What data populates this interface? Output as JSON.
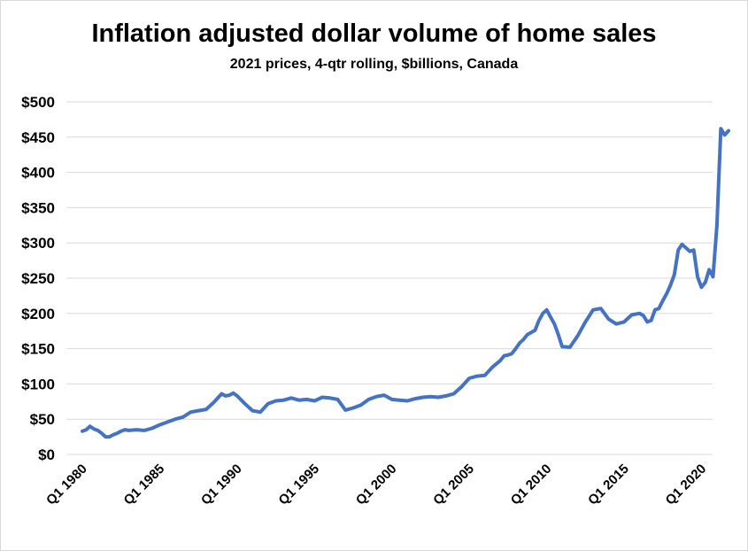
{
  "chart_data": {
    "type": "line",
    "title": "Inflation adjusted dollar volume of home sales",
    "subtitle": "2021 prices, 4-qtr rolling, $billions, Canada",
    "xlabel": "",
    "ylabel": "",
    "x_range": [
      1980.0,
      2021.75
    ],
    "ylim": [
      0,
      500
    ],
    "y_ticks": [
      0,
      50,
      100,
      150,
      200,
      250,
      300,
      350,
      400,
      450,
      500
    ],
    "y_tick_labels": [
      "$0",
      "$50",
      "$100",
      "$150",
      "$200",
      "$250",
      "$300",
      "$350",
      "$400",
      "$450",
      "$500"
    ],
    "x_ticks": [
      1980,
      1985,
      1990,
      1995,
      2000,
      2005,
      2010,
      2015,
      2020
    ],
    "x_tick_labels": [
      "Q1 1980",
      "Q1 1985",
      "Q1 1990",
      "Q1 1995",
      "Q1 2000",
      "Q1 2005",
      "Q1 2010",
      "Q1 2015",
      "Q1 2020"
    ],
    "grid": "horizontal",
    "legend": "none",
    "line_color": "#4472C4",
    "series": [
      {
        "x": [
          1980.0,
          1980.25,
          1980.5,
          1980.75,
          1981.0,
          1981.25,
          1981.5,
          1981.75,
          1982.0,
          1982.25,
          1982.5,
          1982.75,
          1983.0,
          1983.5,
          1984.0,
          1984.5,
          1985.0,
          1985.5,
          1986.0,
          1986.5,
          1987.0,
          1987.5,
          1988.0,
          1988.5,
          1989.0,
          1989.25,
          1989.5,
          1989.75,
          1990.0,
          1990.5,
          1991.0,
          1991.5,
          1992.0,
          1992.5,
          1993.0,
          1993.5,
          1994.0,
          1994.5,
          1995.0,
          1995.5,
          1996.0,
          1996.5,
          1997.0,
          1997.5,
          1998.0,
          1998.5,
          1999.0,
          1999.5,
          2000.0,
          2000.5,
          2001.0,
          2001.5,
          2002.0,
          2002.5,
          2003.0,
          2003.5,
          2004.0,
          2004.5,
          2005.0,
          2005.5,
          2006.0,
          2006.5,
          2007.0,
          2007.25,
          2007.5,
          2007.75,
          2008.0,
          2008.25,
          2008.5,
          2008.75,
          2009.0,
          2009.25,
          2009.5,
          2009.75,
          2010.0,
          2010.25,
          2010.5,
          2010.75,
          2011.0,
          2011.5,
          2012.0,
          2012.5,
          2013.0,
          2013.5,
          2014.0,
          2014.5,
          2015.0,
          2015.5,
          2016.0,
          2016.25,
          2016.5,
          2016.75,
          2017.0,
          2017.25,
          2017.5,
          2017.75,
          2018.0,
          2018.25,
          2018.5,
          2018.75,
          2019.0,
          2019.25,
          2019.5,
          2019.75,
          2020.0,
          2020.25,
          2020.5,
          2020.75,
          2021.0,
          2021.25,
          2021.5,
          2021.75
        ],
        "values": [
          33,
          35,
          40,
          36,
          34,
          30,
          25,
          25,
          28,
          30,
          33,
          35,
          34,
          35,
          34,
          37,
          42,
          46,
          50,
          53,
          60,
          62,
          64,
          74,
          86,
          83,
          84,
          87,
          83,
          72,
          62,
          60,
          72,
          76,
          77,
          80,
          77,
          78,
          76,
          81,
          80,
          78,
          63,
          66,
          70,
          78,
          82,
          84,
          78,
          77,
          76,
          79,
          81,
          82,
          81,
          83,
          86,
          96,
          108,
          111,
          112,
          124,
          133,
          140,
          141,
          143,
          150,
          158,
          163,
          170,
          173,
          176,
          190,
          200,
          205,
          195,
          185,
          170,
          153,
          152,
          168,
          188,
          205,
          207,
          192,
          185,
          188,
          198,
          200,
          197,
          188,
          190,
          205,
          207,
          218,
          228,
          240,
          255,
          290,
          298,
          293,
          288,
          290,
          252,
          237,
          244,
          262,
          252,
          325,
          462,
          453,
          459
        ]
      }
    ]
  }
}
